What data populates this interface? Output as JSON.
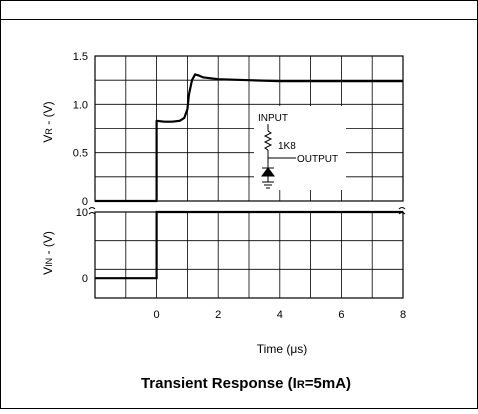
{
  "chart_data": {
    "type": "line",
    "title": "Transient Response (I",
    "title_sub": "R",
    "title_end": "=5mA)",
    "xlabel": "Time (μs)",
    "x_ticks": [
      "0",
      "2",
      "4",
      "6",
      "8"
    ],
    "xlim": [
      -2,
      8
    ],
    "grid": true,
    "panels": [
      {
        "ylabel_pre": "V",
        "ylabel_sub": "R",
        "ylabel_post": " - (V)",
        "ylim": [
          0,
          1.5
        ],
        "y_ticks": [
          "0",
          "0.5",
          "1.0",
          "1.5"
        ],
        "series": [
          {
            "x": [
              -2,
              0,
              0,
              0.25,
              0.5,
              0.75,
              0.9,
              1.0,
              1.05,
              1.15,
              1.25,
              1.35,
              1.5,
              2,
              3,
              4,
              5,
              6,
              7,
              8
            ],
            "y": [
              0,
              0,
              0.83,
              0.82,
              0.82,
              0.83,
              0.86,
              0.95,
              1.1,
              1.25,
              1.31,
              1.3,
              1.28,
              1.26,
              1.25,
              1.24,
              1.24,
              1.24,
              1.24,
              1.24
            ]
          }
        ]
      },
      {
        "ylabel_pre": "V",
        "ylabel_sub": "IN",
        "ylabel_post": " - (V)",
        "ylim": [
          -3,
          10
        ],
        "y_ticks": [
          "0",
          "10"
        ],
        "series": [
          {
            "x": [
              -2,
              0,
              0,
              8
            ],
            "y": [
              0,
              0,
              10,
              10
            ]
          }
        ]
      }
    ],
    "inset_circuit": {
      "input_label": "INPUT",
      "resistor_label": "1K8",
      "output_label": "OUTPUT"
    }
  }
}
